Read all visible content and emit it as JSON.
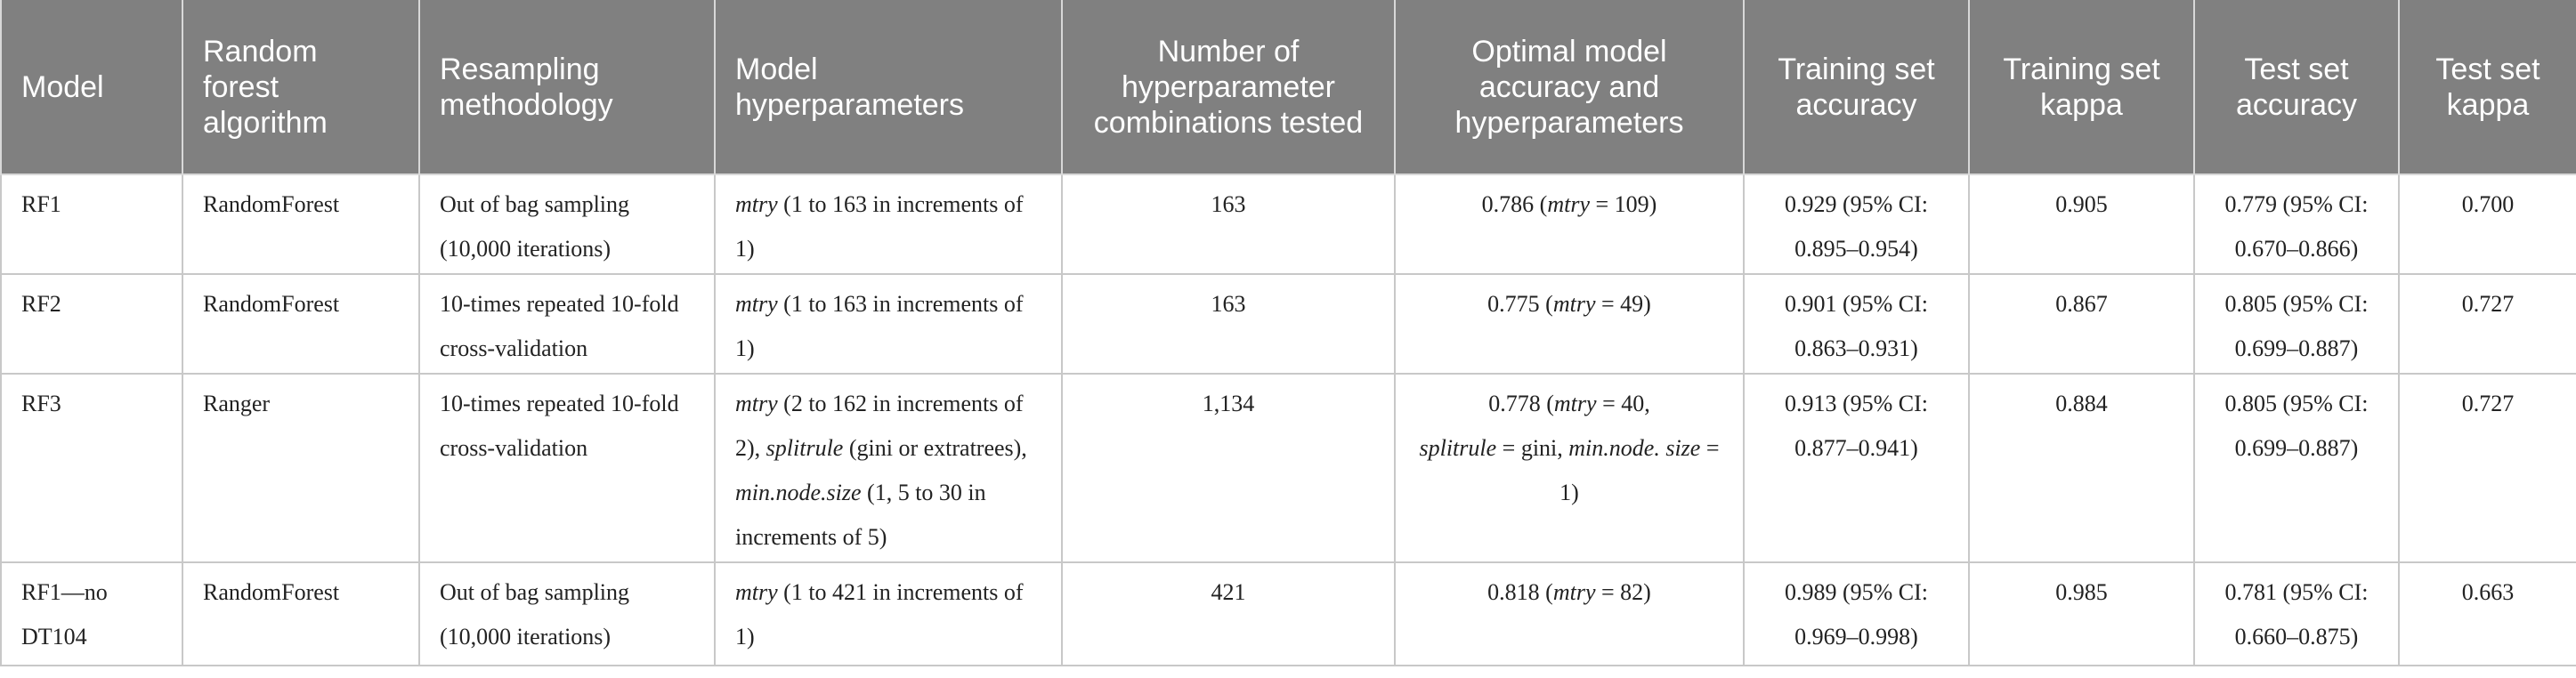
{
  "headers": [
    "Model",
    "Random forest algorithm",
    "Resampling methodology",
    "Model hyperparameters",
    "Number of hyperparameter combinations tested",
    "Optimal model accuracy and hyperparameters",
    "Training set accuracy",
    "Training set kappa",
    "Test set accuracy",
    "Test set kappa"
  ],
  "rows": [
    {
      "model": "RF1",
      "algorithm": "RandomForest",
      "resampling": "Out of bag sampling (10,000 iterations)",
      "hyper": {
        "p1_param": "mtry",
        "p1_text": " (1 to 163 in increments of 1)"
      },
      "combinations": "163",
      "optimal": {
        "acc": "0.786 (",
        "param": "mtry",
        "rest": " = 109)"
      },
      "train_acc": "0.929 (95% CI: 0.895–0.954)",
      "train_kappa": "0.905",
      "test_acc": "0.779 (95% CI: 0.670–0.866)",
      "test_kappa": "0.700"
    },
    {
      "model": "RF2",
      "algorithm": "RandomForest",
      "resampling": "10-times repeated 10-fold cross-validation",
      "hyper": {
        "p1_param": "mtry",
        "p1_text": " (1 to 163 in increments of 1)"
      },
      "combinations": "163",
      "optimal": {
        "acc": "0.775 (",
        "param": "mtry",
        "rest": " = 49)"
      },
      "train_acc": "0.901 (95% CI: 0.863–0.931)",
      "train_kappa": "0.867",
      "test_acc": "0.805 (95% CI: 0.699–0.887)",
      "test_kappa": "0.727"
    },
    {
      "model": "RF3",
      "algorithm": "Ranger",
      "resampling": "10-times repeated 10-fold cross-validation",
      "hyper": {
        "p1_param": "mtry",
        "p1_text": " (2 to 162 in increments of 2), ",
        "p2_param": "splitrule",
        "p2_text": " (gini or extratrees), ",
        "p3_param": "min.node.size",
        "p3_text": " (1, 5 to 30 in increments of 5)"
      },
      "combinations": "1,134",
      "optimal": {
        "acc": "0.778 (",
        "param": "mtry",
        "rest": " = 40, ",
        "param2": "splitrule",
        "rest2": " = gini, ",
        "param3": "min.node. size",
        "rest3": " = 1)"
      },
      "train_acc": "0.913 (95% CI: 0.877–0.941)",
      "train_kappa": "0.884",
      "test_acc": "0.805 (95% CI: 0.699–0.887)",
      "test_kappa": "0.727"
    },
    {
      "model": "RF1—no DT104",
      "algorithm": "RandomForest",
      "resampling": "Out of bag sampling (10,000 iterations)",
      "hyper": {
        "p1_param": "mtry",
        "p1_text": " (1 to 421 in increments of 1)"
      },
      "combinations": "421",
      "optimal": {
        "acc": "0.818 (",
        "param": "mtry",
        "rest": " = 82)"
      },
      "train_acc": "0.989 (95% CI: 0.969–0.998)",
      "train_kappa": "0.985",
      "test_acc": "0.781 (95% CI: 0.660–0.875)",
      "test_kappa": "0.663"
    }
  ]
}
